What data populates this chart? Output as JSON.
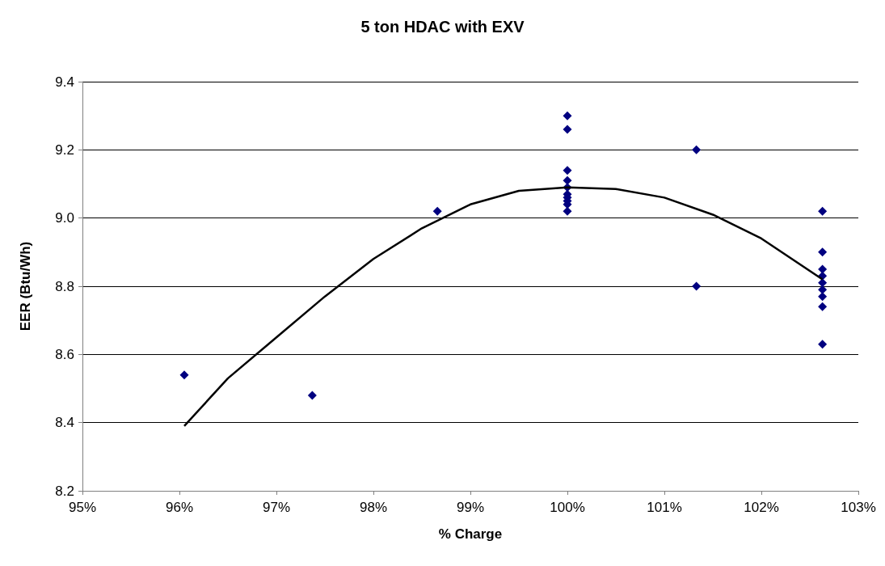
{
  "chart_data": {
    "type": "scatter",
    "title": "5 ton HDAC with EXV",
    "xlabel": "% Charge",
    "ylabel": "EER (Btu/Wh)",
    "series": [
      {
        "color": "#000080",
        "marker": "diamond",
        "x": [
          96.05,
          97.37,
          98.66,
          100,
          100,
          100,
          100,
          100,
          100,
          100,
          100,
          100,
          100,
          101.33,
          101.33,
          102.63,
          102.63,
          102.63,
          102.63,
          102.63,
          102.63,
          102.63,
          102.63,
          102.63
        ],
        "values": [
          8.54,
          8.48,
          9.02,
          9.3,
          9.26,
          9.14,
          9.11,
          9.09,
          9.07,
          9.06,
          9.05,
          9.04,
          9.02,
          9.2,
          8.8,
          9.02,
          8.9,
          8.85,
          8.83,
          8.81,
          8.79,
          8.77,
          8.74,
          8.63
        ]
      },
      {
        "type": "line",
        "color": "#000000",
        "marker": "none",
        "x": [
          96.05,
          96.5,
          97,
          97.5,
          98,
          98.5,
          99,
          99.5,
          100,
          100.5,
          101,
          101.5,
          102,
          102.63
        ],
        "values": [
          8.39,
          8.53,
          8.65,
          8.77,
          8.88,
          8.97,
          9.04,
          9.08,
          9.09,
          9.085,
          9.06,
          9.01,
          8.94,
          8.82
        ]
      }
    ],
    "xlim": [
      95,
      103
    ],
    "xticks": [
      {
        "value": 95,
        "label": "95%"
      },
      {
        "value": 96,
        "label": "96%"
      },
      {
        "value": 97,
        "label": "97%"
      },
      {
        "value": 98,
        "label": "98%"
      },
      {
        "value": 99,
        "label": "99%"
      },
      {
        "value": 100,
        "label": "100%"
      },
      {
        "value": 101,
        "label": "101%"
      },
      {
        "value": 102,
        "label": "102%"
      },
      {
        "value": 103,
        "label": "103%"
      }
    ],
    "ylim": [
      8.2,
      9.4
    ],
    "yticks": [
      8.2,
      8.4,
      8.6,
      8.8,
      {
        "value": 9,
        "label": "9.0"
      },
      9.2,
      9.4
    ],
    "grid": "y"
  }
}
